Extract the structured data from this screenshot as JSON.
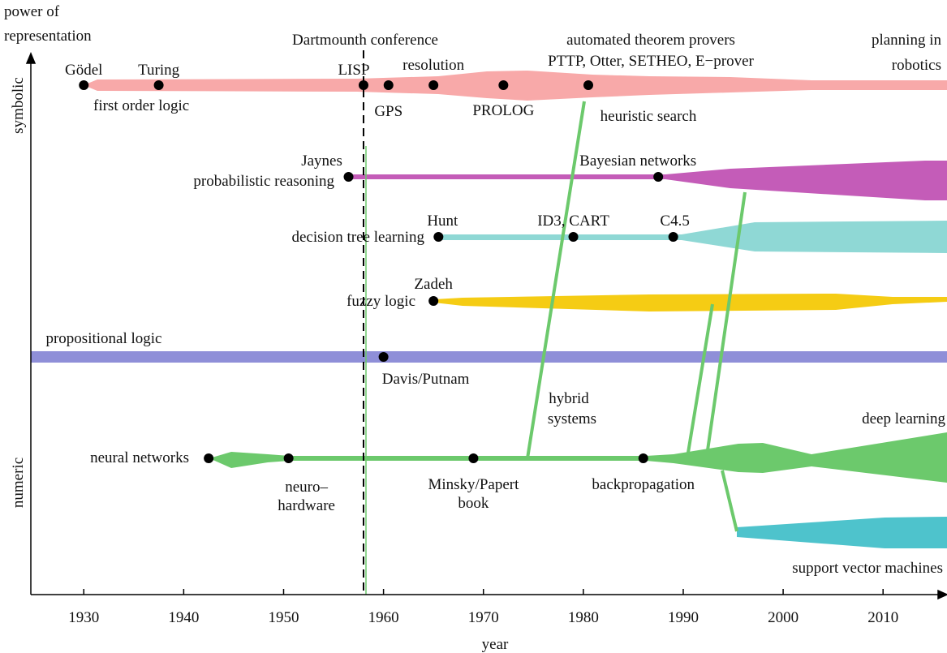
{
  "chart_data": {
    "type": "timeline",
    "y_label": [
      "power of",
      "representation"
    ],
    "x_label": "year",
    "y_axis_top": "symbolic",
    "y_axis_bottom": "numeric",
    "xlim": [
      1924.7,
      2016.4
    ],
    "xticks": [
      1930,
      1940,
      1950,
      1960,
      1970,
      1980,
      1990,
      2000,
      2010
    ],
    "marker": {
      "label": "Dartmounth conference",
      "year": 1958
    },
    "notes": {
      "atp": [
        "automated theorem provers",
        "PTTP, Otter, SETHEO, E−prover"
      ],
      "planning": [
        "planning in",
        "robotics"
      ],
      "hybrid": [
        "hybrid",
        "systems"
      ],
      "deep": "deep learning",
      "svm": "support vector machines"
    },
    "tracks": [
      {
        "name": "first order logic",
        "events": [
          {
            "label": "Gödel",
            "year": 1930
          },
          {
            "label": "Turing",
            "year": 1937.5
          },
          {
            "label": "LISP",
            "year": 1958
          },
          {
            "label": "GPS",
            "year": 1960.5
          },
          {
            "label": "resolution",
            "year": 1965
          },
          {
            "label": "PROLOG",
            "year": 1972
          },
          {
            "label": "heuristic search",
            "year": 1980.5
          }
        ]
      },
      {
        "name": "probabilistic reasoning",
        "events": [
          {
            "label": "Jaynes",
            "year": 1956.5
          },
          {
            "label": "Bayesian networks",
            "year": 1987.5
          }
        ]
      },
      {
        "name": "decision tree learning",
        "events": [
          {
            "label": "Hunt",
            "year": 1965.5
          },
          {
            "label": "ID3, CART",
            "year": 1979
          },
          {
            "label": "C4.5",
            "year": 1989
          }
        ]
      },
      {
        "name": "fuzzy logic",
        "events": [
          {
            "label": "Zadeh",
            "year": 1965
          }
        ]
      },
      {
        "name": "propositional logic",
        "events": [
          {
            "label": "Davis/Putnam",
            "year": 1960
          }
        ]
      },
      {
        "name": "neural networks",
        "events": [
          {
            "label": "neuro– hardware",
            "year": 1950.5
          },
          {
            "label": "Minsky/Papert book",
            "year": 1969
          },
          {
            "label": "backpropagation",
            "year": 1986
          }
        ],
        "start": 1942.5
      }
    ]
  }
}
